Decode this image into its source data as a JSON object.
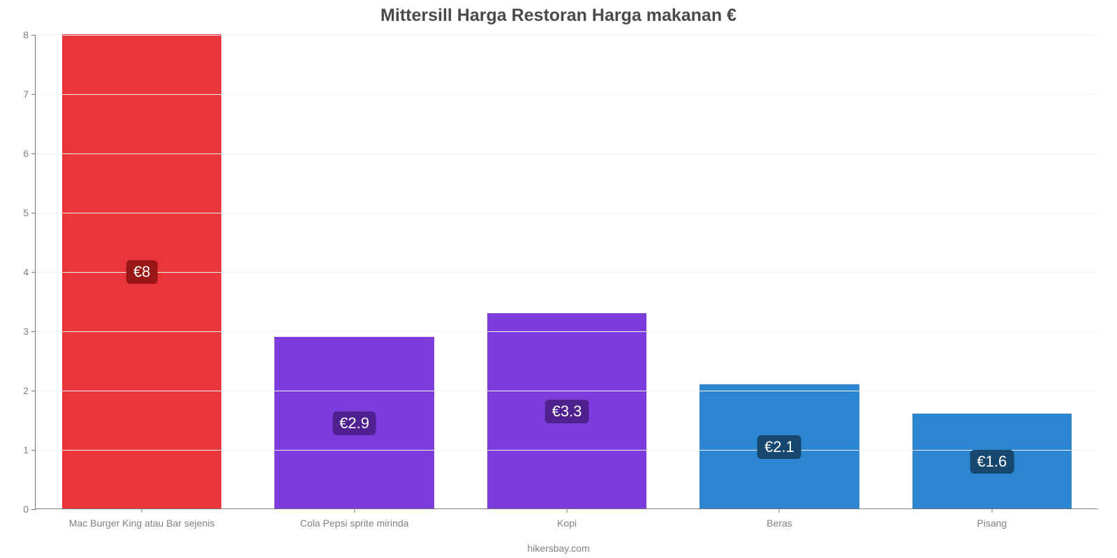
{
  "chart": {
    "type": "bar",
    "title": "Mittersill Harga Restoran Harga makanan €",
    "title_fontsize": 25,
    "title_color": "#4a4a4a",
    "source_text": "hikersbay.com",
    "background_color": "#ffffff",
    "grid_color": "#f2f2f2",
    "axis_color": "#777777",
    "tick_label_color": "#808080",
    "tick_label_fontsize": 14,
    "ylim": [
      0,
      8
    ],
    "ytick_step": 1,
    "bar_width": 0.75,
    "categories": [
      "Mac Burger King atau Bar sejenis",
      "Cola Pepsi sprite mirinda",
      "Kopi",
      "Beras",
      "Pisang"
    ],
    "values": [
      8,
      2.9,
      3.3,
      2.1,
      1.6
    ],
    "value_labels": [
      "€8",
      "€2.9",
      "€3.3",
      "€2.1",
      "€1.6"
    ],
    "bar_colors": [
      "#e8363a",
      "#7f3cdd",
      "#7f3cdd",
      "#2c85d0",
      "#2c85d0"
    ],
    "badge_colors": [
      "#9a1515",
      "#4f218f",
      "#4f218f",
      "#16486f",
      "#16486f"
    ],
    "badge_fontsize": 22
  }
}
